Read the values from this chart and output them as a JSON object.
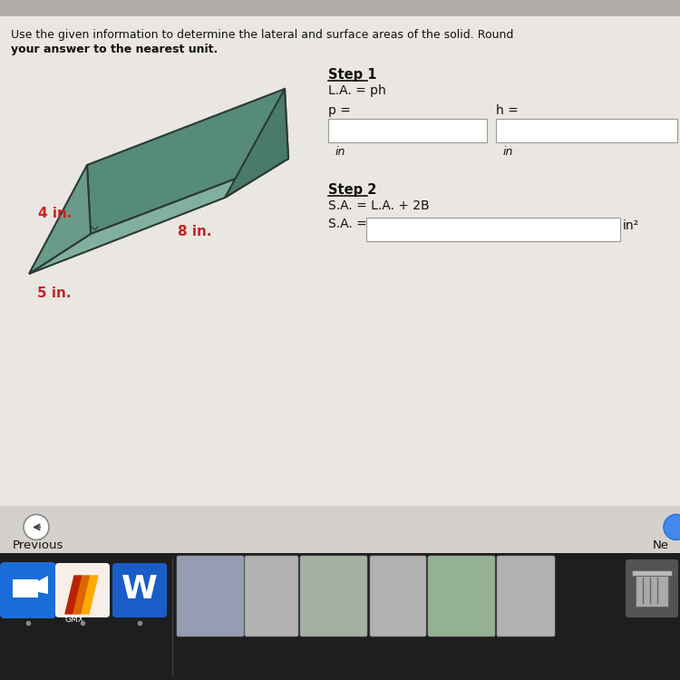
{
  "bg_top": "#c8c4c0",
  "bg_main": "#ccc8c4",
  "content_bg": "#eeeae6",
  "title_line1": "Use the given information to determine the lateral and surface areas of the solid. Round",
  "title_line2": "your answer to the nearest unit.",
  "step1_title": "Step 1",
  "step1_formula": "L.A. = ph",
  "p_label": "p =",
  "h_label": "h =",
  "in_label1": "in",
  "in_label2": "in",
  "step2_title": "Step 2",
  "step2_formula": "S.A. = L.A. + 2B",
  "sa_label": "S.A. =",
  "in2_label": "in²",
  "dim1": "4 in.",
  "dim2": "8 in.",
  "dim3": "5 in.",
  "prism_top_color": "#5a8a7a",
  "prism_side_color": "#7aaa98",
  "prism_bottom_color": "#6a9a88",
  "prism_edge_color": "#2a3a34",
  "dim_color": "#cc2222",
  "text_color": "#111111",
  "nav_bg": "#d8d4d0",
  "dock_bg": "#222222",
  "prev_text": "Previous",
  "next_text": "Ne"
}
